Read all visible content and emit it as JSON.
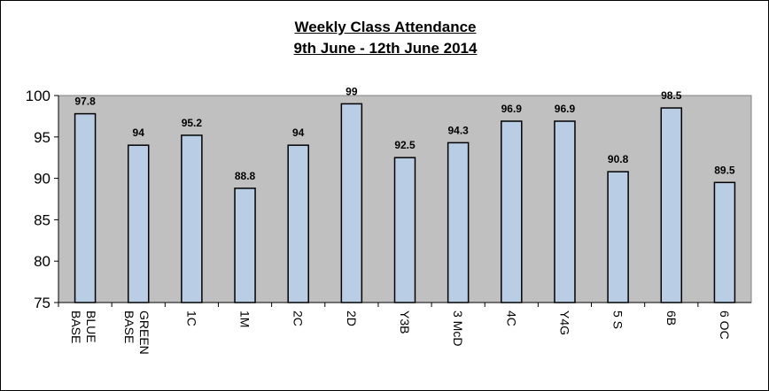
{
  "chart_data": {
    "type": "bar",
    "title": "Weekly Class Attendance",
    "subtitle": "9th June - 12th June 2014",
    "categories": [
      "BLUE BASE",
      "GREEN BASE",
      "1C",
      "1M",
      "2C",
      "2D",
      "Y3B",
      "3 McD",
      "4C",
      "Y4G",
      "5 S",
      "6B",
      "6 OC"
    ],
    "category_lines": [
      [
        "BLUE",
        "BASE"
      ],
      [
        "GREEN",
        "BASE"
      ],
      [
        "1C"
      ],
      [
        "1M"
      ],
      [
        "2C"
      ],
      [
        "2D"
      ],
      [
        "Y3B"
      ],
      [
        "3 McD"
      ],
      [
        "4C"
      ],
      [
        "Y4G"
      ],
      [
        "5 S"
      ],
      [
        "6B"
      ],
      [
        "6 OC"
      ]
    ],
    "values": [
      97.8,
      94,
      95.2,
      88.8,
      94,
      99,
      92.5,
      94.3,
      96.9,
      96.9,
      90.8,
      98.5,
      89.5
    ],
    "value_labels": [
      "97.8",
      "94",
      "95.2",
      "88.8",
      "94",
      "99",
      "92.5",
      "94.3",
      "96.9",
      "96.9",
      "90.8",
      "98.5",
      "89.5"
    ],
    "ylim": [
      75,
      100
    ],
    "y_ticks": [
      "75",
      "80",
      "85",
      "90",
      "95",
      "100"
    ],
    "grid": false,
    "legend": "none",
    "colors": {
      "bar_fill": "#B9CDE5",
      "plot_bg": "#C0C0C0",
      "bar_stroke": "#000000"
    }
  }
}
